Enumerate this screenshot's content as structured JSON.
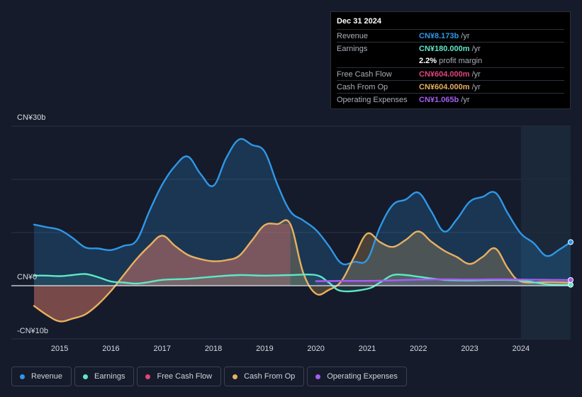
{
  "colors": {
    "revenue": "#2f97e8",
    "earnings": "#5ee8c8",
    "fcf": "#e0457b",
    "cfo": "#e8b060",
    "opex": "#a55df2",
    "grid": "#2c3342"
  },
  "tooltip": {
    "date": "Dec 31 2024",
    "rows": {
      "revenue": {
        "label": "Revenue",
        "value": "CN¥8.173b",
        "unit": "/yr"
      },
      "earnings": {
        "label": "Earnings",
        "value": "CN¥180.000m",
        "unit": "/yr"
      },
      "margin": {
        "value": "2.2%",
        "unit": "profit margin"
      },
      "fcf": {
        "label": "Free Cash Flow",
        "value": "CN¥604.000m",
        "unit": "/yr"
      },
      "cfo": {
        "label": "Cash From Op",
        "value": "CN¥604.000m",
        "unit": "/yr"
      },
      "opex": {
        "label": "Operating Expenses",
        "value": "CN¥1.065b",
        "unit": "/yr"
      }
    }
  },
  "legend": {
    "revenue": "Revenue",
    "earnings": "Earnings",
    "fcf": "Free Cash Flow",
    "cfo": "Cash From Op",
    "opex": "Operating Expenses"
  },
  "chart_data": {
    "type": "area",
    "title": "",
    "xlabel": "",
    "ylabel": "",
    "ylim": [
      -10,
      30
    ],
    "xlim": [
      2014.5,
      2024.97
    ],
    "y_tick_labels": [
      {
        "value": 30,
        "label": "CN¥30b"
      },
      {
        "value": 0,
        "label": "CN¥0"
      },
      {
        "value": -10,
        "label": "-CN¥10b"
      }
    ],
    "x_tick_labels": [
      "2015",
      "2016",
      "2017",
      "2018",
      "2019",
      "2020",
      "2021",
      "2022",
      "2023",
      "2024"
    ],
    "grid": true,
    "highlight_from": 2024.0,
    "series": [
      {
        "key": "revenue",
        "name": "Revenue",
        "x": [
          2014.5,
          2014.75,
          2015.0,
          2015.25,
          2015.5,
          2015.75,
          2016.0,
          2016.25,
          2016.5,
          2016.75,
          2017.0,
          2017.25,
          2017.5,
          2017.75,
          2018.0,
          2018.25,
          2018.5,
          2018.75,
          2019.0,
          2019.25,
          2019.5,
          2019.75,
          2020.0,
          2020.25,
          2020.5,
          2020.75,
          2021.0,
          2021.25,
          2021.5,
          2021.75,
          2022.0,
          2022.25,
          2022.5,
          2022.75,
          2023.0,
          2023.25,
          2023.5,
          2023.75,
          2024.0,
          2024.25,
          2024.5,
          2024.75,
          2024.97
        ],
        "values": [
          11.5,
          11.0,
          10.5,
          9.0,
          7.2,
          7.0,
          6.7,
          7.5,
          8.5,
          14,
          19,
          22.5,
          24.3,
          21,
          18.8,
          24,
          27.5,
          26.5,
          25.2,
          19,
          14,
          12.3,
          10.5,
          7.5,
          4.2,
          4.5,
          4.9,
          11,
          15.2,
          16.2,
          17.5,
          14,
          10.2,
          12.5,
          15.8,
          16.7,
          17.5,
          13.5,
          9.8,
          8.0,
          5.6,
          6.8,
          8.2
        ]
      },
      {
        "key": "earnings",
        "name": "Earnings",
        "x": [
          2014.5,
          2014.75,
          2015.0,
          2015.25,
          2015.5,
          2015.75,
          2016.0,
          2016.25,
          2016.5,
          2016.75,
          2017.0,
          2017.5,
          2018.0,
          2018.5,
          2019.0,
          2019.5,
          2020.0,
          2020.25,
          2020.5,
          2021.0,
          2021.25,
          2021.5,
          2021.75,
          2022.0,
          2022.5,
          2023.0,
          2023.5,
          2024.0,
          2024.5,
          2024.97
        ],
        "values": [
          1.9,
          1.9,
          1.8,
          2.0,
          2.2,
          1.6,
          0.8,
          0.6,
          0.4,
          0.7,
          1.1,
          1.3,
          1.7,
          2.0,
          1.9,
          2.0,
          2.0,
          0.6,
          -1.0,
          -0.6,
          0.6,
          2.0,
          2.0,
          1.7,
          1.1,
          1.0,
          1.1,
          1.0,
          0.3,
          0.18
        ]
      },
      {
        "key": "fcf",
        "name": "Free Cash Flow",
        "x": [
          2014.5,
          2014.75,
          2015.0,
          2015.25,
          2015.5,
          2015.75,
          2016.0,
          2016.25,
          2016.5,
          2016.75,
          2017.0,
          2017.25,
          2017.5,
          2017.75,
          2018.0,
          2018.25,
          2018.5,
          2018.75,
          2019.0,
          2019.25,
          2019.5
        ],
        "values": [
          -3.8,
          -5.5,
          -6.7,
          -6.2,
          -5.4,
          -3.5,
          -1.0,
          2.0,
          5.0,
          7.5,
          9.4,
          7.5,
          5.8,
          5.0,
          4.6,
          4.8,
          5.6,
          8.5,
          11.4,
          11.6,
          11.6
        ]
      },
      {
        "key": "cfo",
        "name": "Cash From Op",
        "x": [
          2014.5,
          2014.75,
          2015.0,
          2015.25,
          2015.5,
          2015.75,
          2016.0,
          2016.25,
          2016.5,
          2016.75,
          2017.0,
          2017.25,
          2017.5,
          2017.75,
          2018.0,
          2018.25,
          2018.5,
          2018.75,
          2019.0,
          2019.25,
          2019.5,
          2019.75,
          2020.0,
          2020.25,
          2020.5,
          2020.75,
          2021.0,
          2021.25,
          2021.5,
          2021.75,
          2022.0,
          2022.25,
          2022.5,
          2022.75,
          2023.0,
          2023.25,
          2023.5,
          2023.75,
          2024.0,
          2024.5,
          2024.97
        ],
        "values": [
          -3.8,
          -5.5,
          -6.7,
          -6.2,
          -5.4,
          -3.5,
          -1.0,
          2.0,
          5.0,
          7.5,
          9.4,
          7.5,
          5.8,
          5.0,
          4.6,
          4.8,
          5.6,
          8.5,
          11.4,
          11.6,
          11.6,
          2.5,
          -1.5,
          -0.8,
          0.9,
          5.5,
          9.8,
          8.2,
          7.3,
          8.6,
          10.2,
          8.3,
          6.6,
          5.4,
          4.1,
          5.4,
          7.0,
          3.2,
          0.8,
          0.7,
          0.6
        ]
      },
      {
        "key": "opex",
        "name": "Operating Expenses",
        "x": [
          2020.0,
          2020.5,
          2021.0,
          2021.5,
          2022.0,
          2022.5,
          2023.0,
          2023.5,
          2024.0,
          2024.5,
          2024.97
        ],
        "values": [
          0.85,
          0.9,
          0.9,
          1.0,
          1.15,
          1.2,
          1.15,
          1.2,
          1.15,
          1.1,
          1.065
        ]
      }
    ]
  }
}
